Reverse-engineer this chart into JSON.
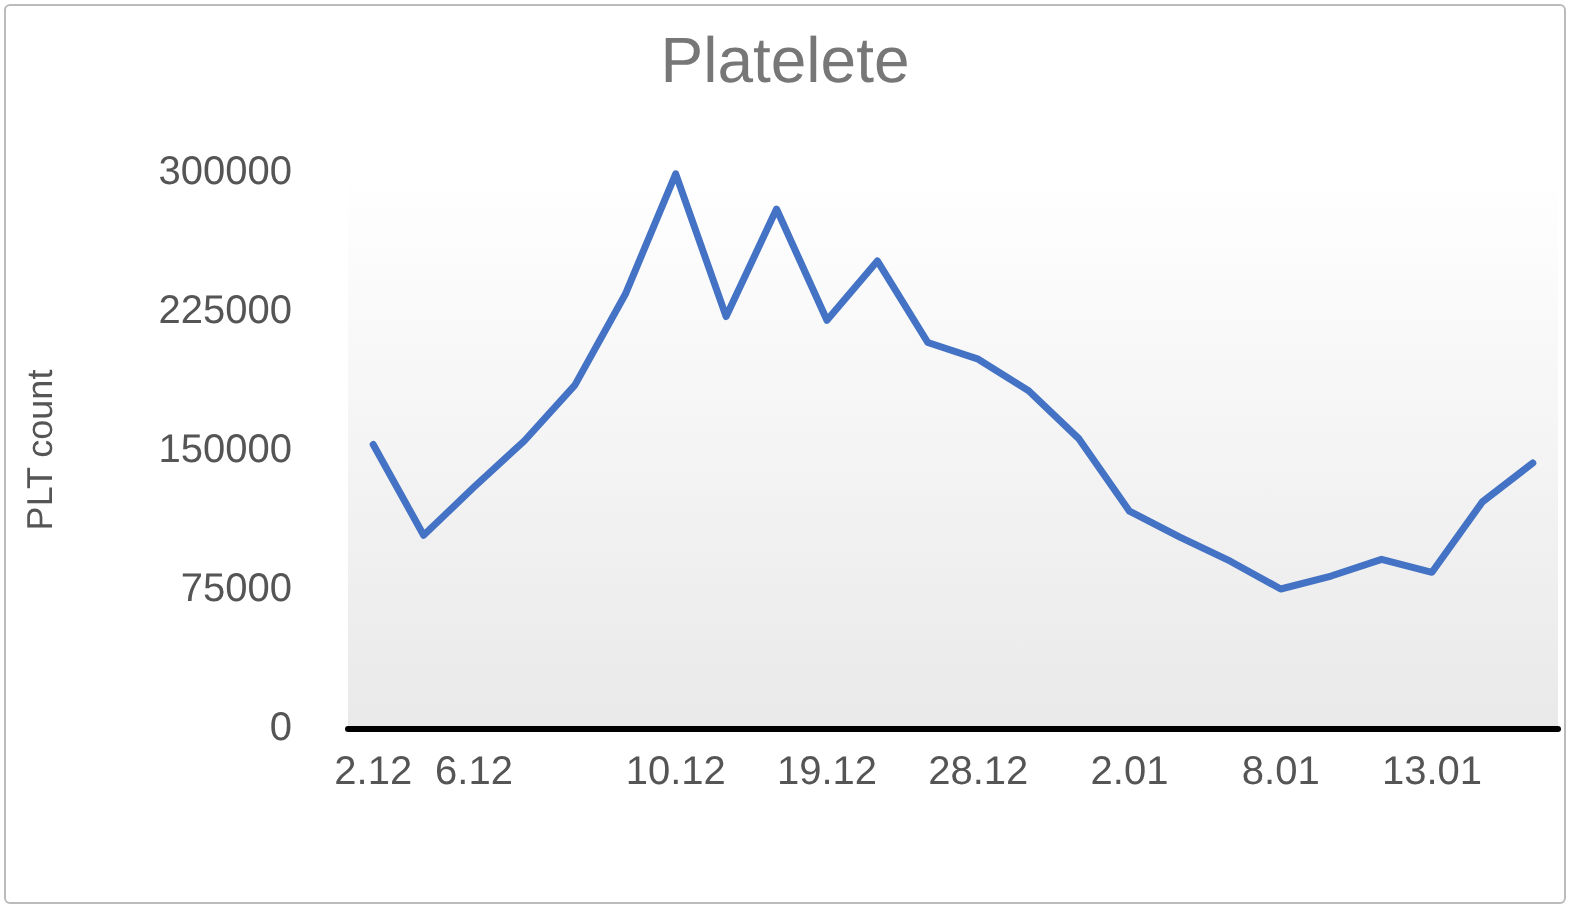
{
  "chart_data": {
    "type": "line",
    "title": "Platelete",
    "ylabel": "PLT count",
    "categories": [
      "2.12",
      null,
      "6.12",
      null,
      null,
      null,
      "10.12",
      null,
      null,
      "19.12",
      null,
      null,
      "28.12",
      null,
      null,
      "2.01",
      null,
      null,
      "8.01",
      null,
      null,
      "13.01",
      null,
      null
    ],
    "series": [
      {
        "color": "#4472c4",
        "values": [
          153000,
          104000,
          130000,
          155000,
          185000,
          234000,
          299000,
          222000,
          280000,
          220000,
          252000,
          208000,
          199000,
          182000,
          156000,
          117000,
          103000,
          90000,
          75000,
          82000,
          91000,
          84000,
          122000,
          143000
        ]
      }
    ],
    "ylim": [
      0,
      300000
    ],
    "yticks": [
      0,
      75000,
      150000,
      225000,
      300000
    ],
    "grid": false,
    "marker": "none",
    "line_style": "solid"
  }
}
